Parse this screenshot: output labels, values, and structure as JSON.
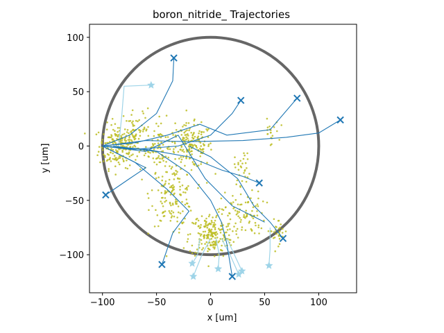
{
  "chart_data": {
    "type": "scatter",
    "title": "boron_nitride_ Trajectories",
    "xlabel": "x [um]",
    "ylabel": "y [um]",
    "xlim": [
      -112,
      135
    ],
    "ylim": [
      -135,
      112
    ],
    "xticks": [
      -100,
      -50,
      0,
      50,
      100
    ],
    "yticks": [
      -100,
      -50,
      0,
      50,
      100
    ],
    "grid": false,
    "colors": {
      "trajectory": "#1f77b4",
      "light_trajectory": "#9ed4e8",
      "particles": "#bcbd22",
      "boundary": "#666666"
    },
    "boundary_circle": {
      "center": [
        0,
        0
      ],
      "radius": 100
    },
    "clusters": [
      {
        "center": [
          -85,
          0
        ],
        "spread": [
          9,
          10
        ],
        "count": 200
      },
      {
        "center": [
          -47,
          0
        ],
        "spread": [
          7,
          12
        ],
        "count": 80
      },
      {
        "center": [
          -18,
          0
        ],
        "spread": [
          10,
          10
        ],
        "count": 160
      },
      {
        "center": [
          -35,
          -45
        ],
        "spread": [
          10,
          14
        ],
        "count": 140
      },
      {
        "center": [
          0,
          -82
        ],
        "spread": [
          10,
          10
        ],
        "count": 200
      },
      {
        "center": [
          30,
          -62
        ],
        "spread": [
          10,
          10
        ],
        "count": 90
      },
      {
        "center": [
          -68,
          10
        ],
        "spread": [
          6,
          12
        ],
        "count": 60
      },
      {
        "center": [
          30,
          -20
        ],
        "spread": [
          4,
          8
        ],
        "count": 30
      },
      {
        "center": [
          55,
          12
        ],
        "spread": [
          4,
          6
        ],
        "count": 20
      },
      {
        "center": [
          62,
          -78
        ],
        "spread": [
          5,
          6
        ],
        "count": 30
      }
    ],
    "trajectories": [
      {
        "points": [
          [
            -100,
            0
          ],
          [
            -70,
            3
          ],
          [
            -40,
            10
          ],
          [
            -10,
            20
          ],
          [
            15,
            10
          ],
          [
            55,
            15
          ],
          [
            80,
            44
          ]
        ],
        "end_marker": "x"
      },
      {
        "points": [
          [
            -100,
            0
          ],
          [
            -60,
            5
          ],
          [
            -20,
            4
          ],
          [
            30,
            5
          ],
          [
            70,
            8
          ],
          [
            100,
            12
          ],
          [
            120,
            24
          ]
        ],
        "end_marker": "x"
      },
      {
        "points": [
          [
            -100,
            0
          ],
          [
            -75,
            10
          ],
          [
            -50,
            30
          ],
          [
            -35,
            60
          ],
          [
            -34,
            81
          ]
        ],
        "end_marker": "x"
      },
      {
        "points": [
          [
            -100,
            0
          ],
          [
            -70,
            -3
          ],
          [
            -30,
            0
          ],
          [
            0,
            10
          ],
          [
            20,
            30
          ],
          [
            28,
            42
          ]
        ],
        "end_marker": "x"
      },
      {
        "points": [
          [
            -100,
            0
          ],
          [
            -60,
            -3
          ],
          [
            -20,
            -10
          ],
          [
            10,
            -22
          ],
          [
            30,
            -28
          ],
          [
            45,
            -34
          ]
        ],
        "end_marker": "x"
      },
      {
        "points": [
          [
            -100,
            0
          ],
          [
            -80,
            -10
          ],
          [
            -60,
            -20
          ],
          [
            -75,
            -30
          ],
          [
            -97,
            -45
          ]
        ],
        "end_marker": "x"
      },
      {
        "points": [
          [
            -100,
            0
          ],
          [
            -70,
            -15
          ],
          [
            -40,
            -40
          ],
          [
            -20,
            -60
          ],
          [
            -35,
            -80
          ],
          [
            -45,
            -109
          ]
        ],
        "end_marker": "x"
      },
      {
        "points": [
          [
            -90,
            0
          ],
          [
            -50,
            -5
          ],
          [
            -20,
            -25
          ],
          [
            0,
            -50
          ],
          [
            10,
            -70
          ],
          [
            15,
            -90
          ],
          [
            20,
            -120
          ]
        ],
        "end_marker": "x"
      },
      {
        "points": [
          [
            -20,
            0
          ],
          [
            0,
            -10
          ],
          [
            25,
            -30
          ],
          [
            40,
            -55
          ],
          [
            55,
            -70
          ],
          [
            67,
            -85
          ]
        ],
        "end_marker": "x"
      },
      {
        "points": [
          [
            -100,
            0
          ],
          [
            -60,
            -5
          ],
          [
            -30,
            10
          ],
          [
            -5,
            -30
          ],
          [
            20,
            -55
          ],
          [
            40,
            -65
          ],
          [
            50,
            -70
          ]
        ],
        "end_marker": "none"
      }
    ],
    "light_trajectories": [
      {
        "points": [
          [
            -85,
            0
          ],
          [
            -82,
            30
          ],
          [
            -80,
            55
          ],
          [
            -55,
            56
          ]
        ],
        "start_marker": "star"
      },
      {
        "points": [
          [
            -10,
            -85
          ],
          [
            -12,
            -100
          ],
          [
            -17,
            -108
          ]
        ],
        "start_marker": "star"
      },
      {
        "points": [
          [
            0,
            -85
          ],
          [
            -8,
            -100
          ],
          [
            -16,
            -120
          ]
        ],
        "start_marker": "star"
      },
      {
        "points": [
          [
            5,
            -85
          ],
          [
            8,
            -100
          ],
          [
            7,
            -113
          ]
        ],
        "start_marker": "star"
      },
      {
        "points": [
          [
            10,
            -85
          ],
          [
            18,
            -100
          ],
          [
            26,
            -118
          ]
        ],
        "start_marker": "star"
      },
      {
        "points": [
          [
            15,
            -85
          ],
          [
            22,
            -100
          ],
          [
            29,
            -115
          ]
        ],
        "start_marker": "star"
      },
      {
        "points": [
          [
            55,
            -75
          ],
          [
            55,
            -95
          ],
          [
            54,
            -110
          ]
        ],
        "start_marker": "star"
      }
    ]
  }
}
